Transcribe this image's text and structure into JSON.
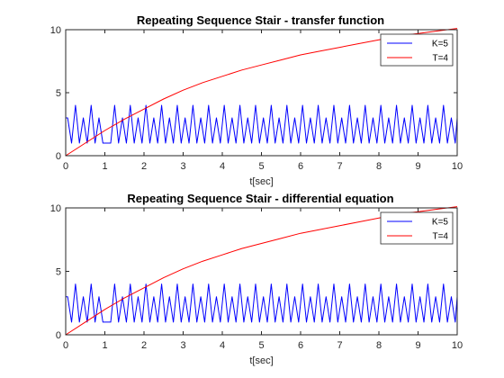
{
  "chart_data": [
    {
      "type": "line",
      "title": "Repeating Sequence Stair - transfer function",
      "xlabel": "t[sec]",
      "ylabel": "",
      "xlim": [
        0,
        10
      ],
      "ylim": [
        0,
        10
      ],
      "xticks": [
        0,
        1,
        2,
        3,
        4,
        5,
        6,
        7,
        8,
        9,
        10
      ],
      "yticks": [
        0,
        5,
        10
      ],
      "grid": false,
      "legend": "top-right",
      "series": [
        {
          "name": "K=5",
          "color": "#0000ff",
          "x": [
            0.0,
            0.05,
            0.15,
            0.25,
            0.35,
            0.45,
            0.55,
            0.65,
            0.75,
            0.85,
            0.95,
            1.05,
            1.15,
            1.25,
            1.35,
            1.45,
            1.55,
            1.65,
            1.75,
            1.85,
            1.95,
            2.05,
            2.15,
            2.25,
            2.35,
            2.45,
            2.55,
            2.65,
            2.75,
            2.85,
            2.95,
            3.05,
            3.15,
            3.25,
            3.35,
            3.45,
            3.55,
            3.65,
            3.75,
            3.85,
            3.95,
            4.05,
            4.15,
            4.25,
            4.35,
            4.45,
            4.55,
            4.65,
            4.75,
            4.85,
            4.95,
            5.05,
            5.15,
            5.25,
            5.35,
            5.45,
            5.55,
            5.65,
            5.75,
            5.85,
            5.95,
            6.05,
            6.15,
            6.25,
            6.35,
            6.45,
            6.55,
            6.65,
            6.75,
            6.85,
            6.95,
            7.05,
            7.15,
            7.25,
            7.35,
            7.45,
            7.55,
            7.65,
            7.75,
            7.85,
            7.95,
            8.05,
            8.15,
            8.25,
            8.35,
            8.45,
            8.55,
            8.65,
            8.75,
            8.85,
            8.95,
            9.05,
            9.15,
            9.25,
            9.35,
            9.45,
            9.55,
            9.65,
            9.75,
            9.85,
            9.95,
            10.0
          ],
          "y": [
            3.0,
            3.0,
            1.0,
            4.0,
            1.0,
            3.0,
            1.0,
            4.0,
            1.0,
            3.0,
            1.0,
            1.0,
            1.0,
            4.0,
            1.0,
            3.0,
            1.0,
            4.0,
            1.0,
            3.0,
            1.0,
            4.0,
            1.0,
            3.0,
            1.0,
            4.0,
            1.0,
            3.0,
            1.0,
            4.0,
            1.0,
            3.0,
            1.0,
            4.0,
            1.0,
            3.0,
            1.0,
            4.0,
            1.0,
            3.0,
            1.0,
            4.0,
            1.0,
            3.0,
            1.0,
            4.0,
            1.0,
            3.0,
            1.0,
            4.0,
            1.0,
            3.0,
            1.0,
            4.0,
            1.0,
            3.0,
            1.0,
            4.0,
            1.0,
            3.0,
            1.0,
            4.0,
            1.0,
            3.0,
            1.0,
            4.0,
            1.0,
            3.0,
            1.0,
            4.0,
            1.0,
            3.0,
            1.0,
            4.0,
            1.0,
            3.0,
            1.0,
            4.0,
            1.0,
            3.0,
            1.0,
            4.0,
            1.0,
            3.0,
            1.0,
            4.0,
            1.0,
            3.0,
            1.0,
            4.0,
            1.0,
            3.0,
            1.0,
            4.0,
            1.0,
            3.0,
            1.0,
            4.0,
            1.0,
            3.0,
            1.0,
            3.0
          ]
        },
        {
          "name": "T=4",
          "color": "#ff0000",
          "x": [
            0.0,
            0.5,
            1.0,
            1.5,
            2.0,
            2.5,
            3.0,
            3.5,
            4.0,
            4.5,
            5.0,
            5.5,
            6.0,
            6.5,
            7.0,
            7.5,
            8.0,
            8.5,
            9.0,
            9.5,
            10.0
          ],
          "y": [
            0.0,
            1.0,
            2.0,
            2.9,
            3.7,
            4.5,
            5.2,
            5.8,
            6.3,
            6.8,
            7.2,
            7.6,
            8.0,
            8.3,
            8.6,
            8.9,
            9.2,
            9.5,
            9.7,
            9.9,
            10.1
          ]
        }
      ]
    },
    {
      "type": "line",
      "title": "Repeating Sequence Stair - differential equation",
      "xlabel": "t[sec]",
      "ylabel": "",
      "xlim": [
        0,
        10
      ],
      "ylim": [
        0,
        10
      ],
      "xticks": [
        0,
        1,
        2,
        3,
        4,
        5,
        6,
        7,
        8,
        9,
        10
      ],
      "yticks": [
        0,
        5,
        10
      ],
      "grid": false,
      "legend": "top-right",
      "series": [
        {
          "name": "K=5",
          "color": "#0000ff",
          "x": [
            0.0,
            0.05,
            0.15,
            0.25,
            0.35,
            0.45,
            0.55,
            0.65,
            0.75,
            0.85,
            0.95,
            1.05,
            1.15,
            1.25,
            1.35,
            1.45,
            1.55,
            1.65,
            1.75,
            1.85,
            1.95,
            2.05,
            2.15,
            2.25,
            2.35,
            2.45,
            2.55,
            2.65,
            2.75,
            2.85,
            2.95,
            3.05,
            3.15,
            3.25,
            3.35,
            3.45,
            3.55,
            3.65,
            3.75,
            3.85,
            3.95,
            4.05,
            4.15,
            4.25,
            4.35,
            4.45,
            4.55,
            4.65,
            4.75,
            4.85,
            4.95,
            5.05,
            5.15,
            5.25,
            5.35,
            5.45,
            5.55,
            5.65,
            5.75,
            5.85,
            5.95,
            6.05,
            6.15,
            6.25,
            6.35,
            6.45,
            6.55,
            6.65,
            6.75,
            6.85,
            6.95,
            7.05,
            7.15,
            7.25,
            7.35,
            7.45,
            7.55,
            7.65,
            7.75,
            7.85,
            7.95,
            8.05,
            8.15,
            8.25,
            8.35,
            8.45,
            8.55,
            8.65,
            8.75,
            8.85,
            8.95,
            9.05,
            9.15,
            9.25,
            9.35,
            9.45,
            9.55,
            9.65,
            9.75,
            9.85,
            9.95,
            10.0
          ],
          "y": [
            3.0,
            3.0,
            1.0,
            4.0,
            1.0,
            3.0,
            1.0,
            4.0,
            1.0,
            3.0,
            1.0,
            1.0,
            1.0,
            4.0,
            1.0,
            3.0,
            1.0,
            4.0,
            1.0,
            3.0,
            1.0,
            4.0,
            1.0,
            3.0,
            1.0,
            4.0,
            1.0,
            3.0,
            1.0,
            4.0,
            1.0,
            3.0,
            1.0,
            4.0,
            1.0,
            3.0,
            1.0,
            4.0,
            1.0,
            3.0,
            1.0,
            4.0,
            1.0,
            3.0,
            1.0,
            4.0,
            1.0,
            3.0,
            1.0,
            4.0,
            1.0,
            3.0,
            1.0,
            4.0,
            1.0,
            3.0,
            1.0,
            4.0,
            1.0,
            3.0,
            1.0,
            4.0,
            1.0,
            3.0,
            1.0,
            4.0,
            1.0,
            3.0,
            1.0,
            4.0,
            1.0,
            3.0,
            1.0,
            4.0,
            1.0,
            3.0,
            1.0,
            4.0,
            1.0,
            3.0,
            1.0,
            4.0,
            1.0,
            3.0,
            1.0,
            4.0,
            1.0,
            3.0,
            1.0,
            4.0,
            1.0,
            3.0,
            1.0,
            4.0,
            1.0,
            3.0,
            1.0,
            4.0,
            1.0,
            3.0,
            1.0,
            3.0
          ]
        },
        {
          "name": "T=4",
          "color": "#ff0000",
          "x": [
            0.0,
            0.5,
            1.0,
            1.5,
            2.0,
            2.5,
            3.0,
            3.5,
            4.0,
            4.5,
            5.0,
            5.5,
            6.0,
            6.5,
            7.0,
            7.5,
            8.0,
            8.5,
            9.0,
            9.5,
            10.0
          ],
          "y": [
            0.0,
            1.0,
            2.0,
            2.9,
            3.7,
            4.5,
            5.2,
            5.8,
            6.3,
            6.8,
            7.2,
            7.6,
            8.0,
            8.3,
            8.6,
            8.9,
            9.2,
            9.5,
            9.7,
            9.9,
            10.1
          ]
        }
      ]
    }
  ]
}
